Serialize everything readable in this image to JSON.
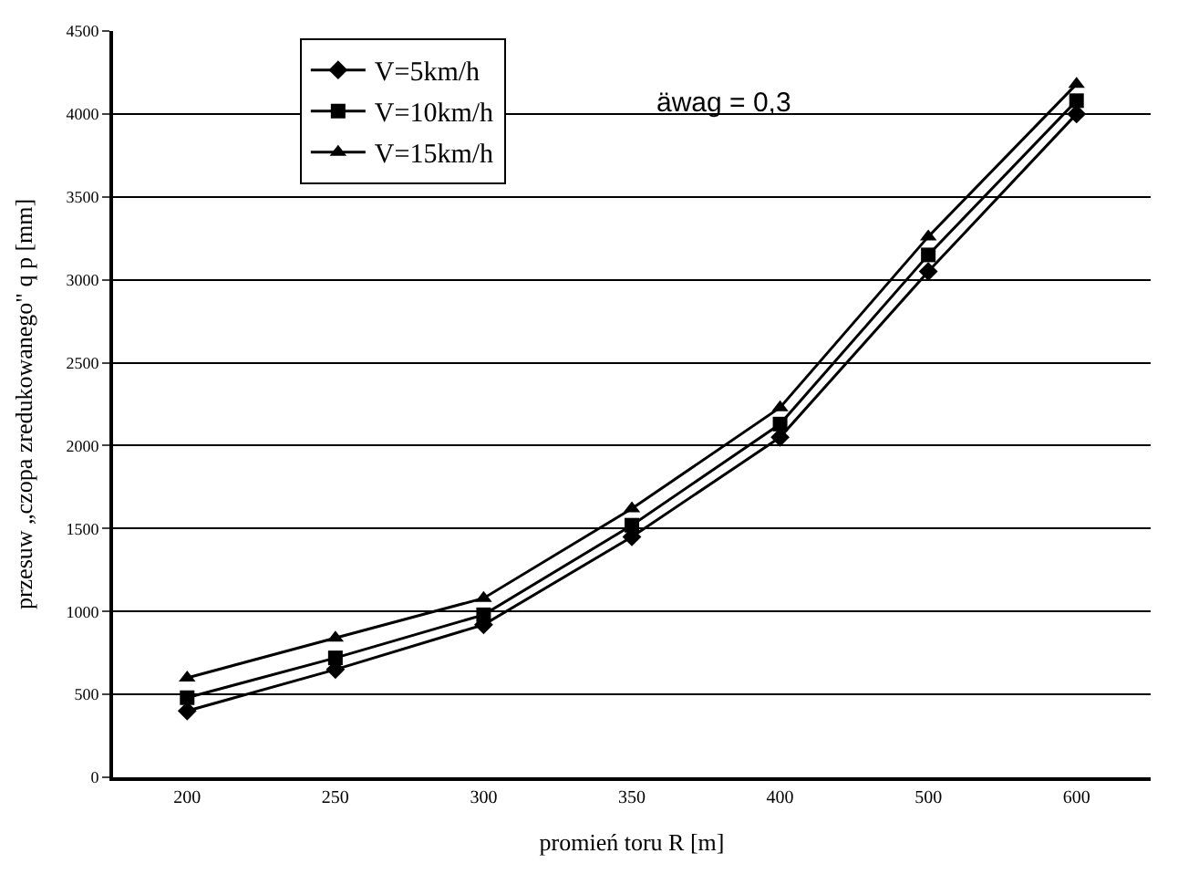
{
  "chart_data": {
    "type": "line",
    "xlabel": "promień toru R [m]",
    "ylabel": "przesuw „czopa zredukowanego\" q p [mm]",
    "categories": [
      "200",
      "250",
      "300",
      "350",
      "400",
      "500",
      "600"
    ],
    "series": [
      {
        "name": "V=5km/h",
        "color": "#000000",
        "marker": "diamond",
        "values": [
          400,
          650,
          920,
          1450,
          2050,
          3050,
          4000
        ]
      },
      {
        "name": "V=10km/h",
        "color": "#000000",
        "marker": "square",
        "values": [
          480,
          720,
          980,
          1520,
          2130,
          3150,
          4080
        ]
      },
      {
        "name": "V=15km/h",
        "color": "#000000",
        "marker": "triangle",
        "values": [
          600,
          840,
          1080,
          1620,
          2230,
          3260,
          4180
        ]
      }
    ],
    "ylim": [
      0,
      4500
    ],
    "yticks": [
      0,
      500,
      1000,
      1500,
      2000,
      2500,
      3000,
      3500,
      4000,
      4500
    ],
    "grid": "y",
    "legend": "top left",
    "line_style": "solid",
    "annotations": [
      "äwag = 0,3"
    ]
  }
}
